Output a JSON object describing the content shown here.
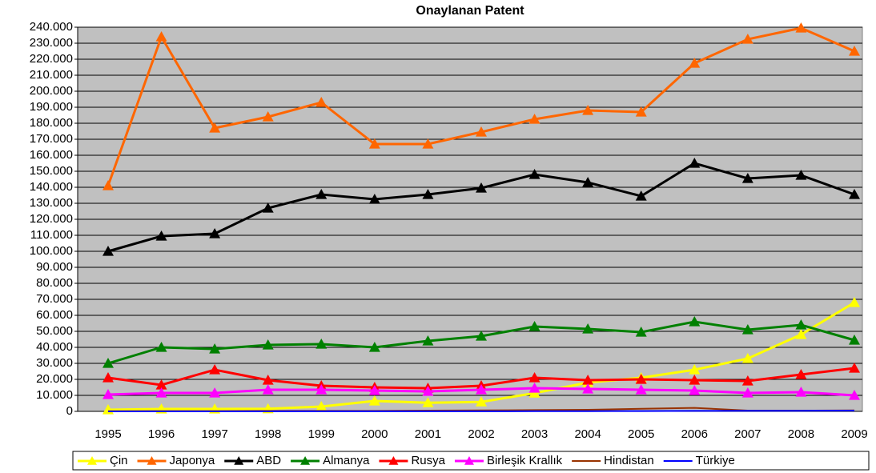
{
  "chart_data": {
    "type": "line",
    "title": "Onaylanan Patent",
    "categories": [
      "1995",
      "1996",
      "1997",
      "1998",
      "1999",
      "2000",
      "2001",
      "2002",
      "2003",
      "2004",
      "2005",
      "2006",
      "2007",
      "2008",
      "2009"
    ],
    "ylim": [
      0,
      240000
    ],
    "yticks": [
      0,
      {
        "value": 10000,
        "label": "10.000"
      },
      {
        "value": 20000,
        "label": "20.000"
      },
      {
        "value": 30000,
        "label": "30.000"
      },
      {
        "value": 40000,
        "label": "40.000"
      },
      {
        "value": 50000,
        "label": "50.000"
      },
      {
        "value": 60000,
        "label": "60.000"
      },
      {
        "value": 70000,
        "label": "70.000"
      },
      {
        "value": 80000,
        "label": "80.000"
      },
      {
        "value": 90000,
        "label": "90.000"
      },
      {
        "value": 100000,
        "label": "100.000"
      },
      {
        "value": 110000,
        "label": "110.000"
      },
      {
        "value": 120000,
        "label": "120.000"
      },
      {
        "value": 130000,
        "label": "130.000"
      },
      {
        "value": 140000,
        "label": "140.000"
      },
      {
        "value": 150000,
        "label": "150.000"
      },
      {
        "value": 160000,
        "label": "160.000"
      },
      {
        "value": 170000,
        "label": "170.000"
      },
      {
        "value": 180000,
        "label": "180.000"
      },
      {
        "value": 190000,
        "label": "190.000"
      },
      {
        "value": 200000,
        "label": "200.000"
      },
      {
        "value": 210000,
        "label": "210.000"
      },
      {
        "value": 220000,
        "label": "220.000"
      },
      {
        "value": 230000,
        "label": "230.000"
      },
      {
        "value": 240000,
        "label": "240.000"
      }
    ],
    "grid": true,
    "legend": "bottom",
    "series": [
      {
        "name": "Çin",
        "color": "#ffff00",
        "marker": "triangle",
        "values": [
          1000,
          1500,
          1500,
          1600,
          3000,
          6500,
          5400,
          5900,
          11400,
          18000,
          21000,
          26000,
          33000,
          48000,
          68000
        ]
      },
      {
        "name": "Japonya",
        "color": "#ff6600",
        "marker": "triangle",
        "values": [
          141000,
          234000,
          177000,
          184000,
          193000,
          167000,
          167000,
          174500,
          182500,
          188000,
          187000,
          217500,
          232500,
          239500,
          225000
        ]
      },
      {
        "name": "ABD",
        "color": "#000000",
        "marker": "triangle",
        "values": [
          100000,
          109500,
          111000,
          127000,
          135500,
          132500,
          135500,
          139500,
          148000,
          143000,
          134500,
          155000,
          145500,
          147500,
          135500
        ]
      },
      {
        "name": "Almanya",
        "color": "#008000",
        "marker": "triangle",
        "values": [
          30000,
          40000,
          39000,
          41500,
          42000,
          40000,
          44000,
          47000,
          53000,
          51500,
          49500,
          56000,
          51000,
          54000,
          44500
        ]
      },
      {
        "name": "Rusya",
        "color": "#ff0000",
        "marker": "triangle",
        "values": [
          21000,
          16500,
          26000,
          19500,
          16000,
          15000,
          14500,
          16000,
          21000,
          19500,
          20000,
          19500,
          19000,
          23000,
          27000
        ]
      },
      {
        "name": "Birleşik Krallık",
        "color": "#ff00ff",
        "marker": "triangle",
        "values": [
          10500,
          11500,
          11500,
          13500,
          13500,
          13000,
          12500,
          13500,
          14500,
          14000,
          13500,
          13000,
          11500,
          12000,
          10000
        ]
      },
      {
        "name": "Hindistan",
        "color": "#993300",
        "marker": "none",
        "values": [
          100,
          200,
          200,
          300,
          300,
          300,
          500,
          600,
          800,
          1000,
          1600,
          2200,
          500,
          500,
          600
        ]
      },
      {
        "name": "Türkiye",
        "color": "#0000ff",
        "marker": "none",
        "values": [
          20,
          20,
          30,
          30,
          40,
          40,
          50,
          80,
          100,
          150,
          200,
          300,
          350,
          400,
          500
        ]
      }
    ]
  }
}
